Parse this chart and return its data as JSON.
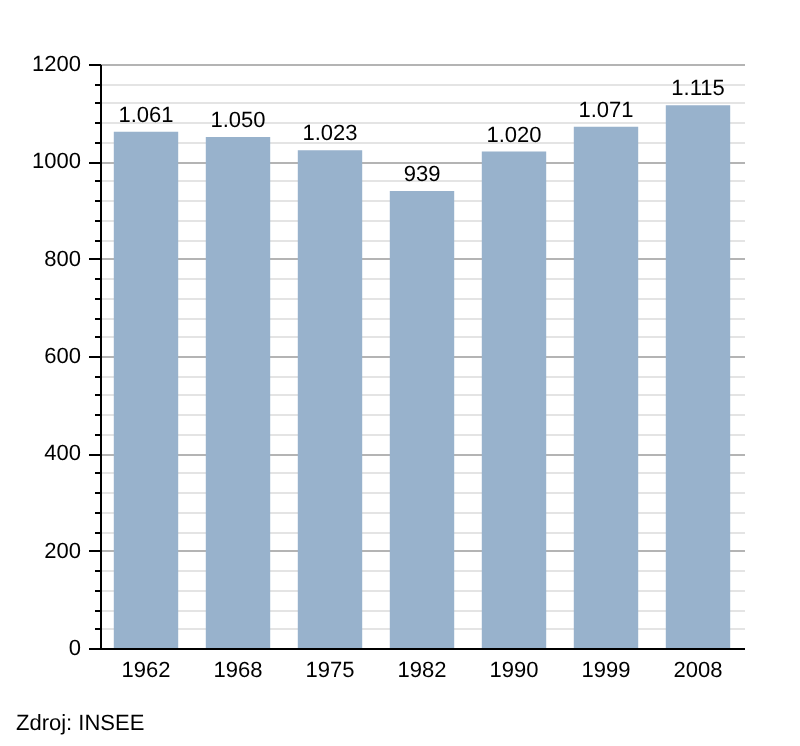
{
  "chart_data": {
    "type": "bar",
    "categories": [
      "1962",
      "1968",
      "1975",
      "1982",
      "1990",
      "1999",
      "2008"
    ],
    "values": [
      1061,
      1050,
      1023,
      939,
      1020,
      1071,
      1115
    ],
    "value_labels": [
      "1.061",
      "1.050",
      "1.023",
      "939",
      "1.020",
      "1.071",
      "1.115"
    ],
    "color": "#98b2cc",
    "ylim": [
      0,
      1200
    ],
    "yticks": [
      0,
      {
        "value": 40,
        "label": null
      },
      {
        "value": 80,
        "label": null
      },
      {
        "value": 120,
        "label": null
      },
      {
        "value": 160,
        "label": null
      },
      200,
      {
        "value": 240,
        "label": null
      },
      {
        "value": 280,
        "label": null
      },
      {
        "value": 320,
        "label": null
      },
      {
        "value": 360,
        "label": null
      },
      400,
      {
        "value": 440,
        "label": null
      },
      {
        "value": 480,
        "label": null
      },
      {
        "value": 520,
        "label": null
      },
      {
        "value": 560,
        "label": null
      },
      600,
      {
        "value": 640,
        "label": null
      },
      {
        "value": 680,
        "label": null
      },
      {
        "value": 720,
        "label": null
      },
      {
        "value": 760,
        "label": null
      },
      800,
      {
        "value": 840,
        "label": null
      },
      {
        "value": 880,
        "label": null
      },
      {
        "value": 920,
        "label": null
      },
      {
        "value": 960,
        "label": null
      },
      1000,
      {
        "value": 1040,
        "label": null
      },
      {
        "value": 1080,
        "label": null
      },
      {
        "value": 1120,
        "label": null
      },
      {
        "value": 1160,
        "label": null
      },
      1200
    ],
    "grid": "y",
    "annotations": [
      "Zdroj: INSEE"
    ]
  }
}
